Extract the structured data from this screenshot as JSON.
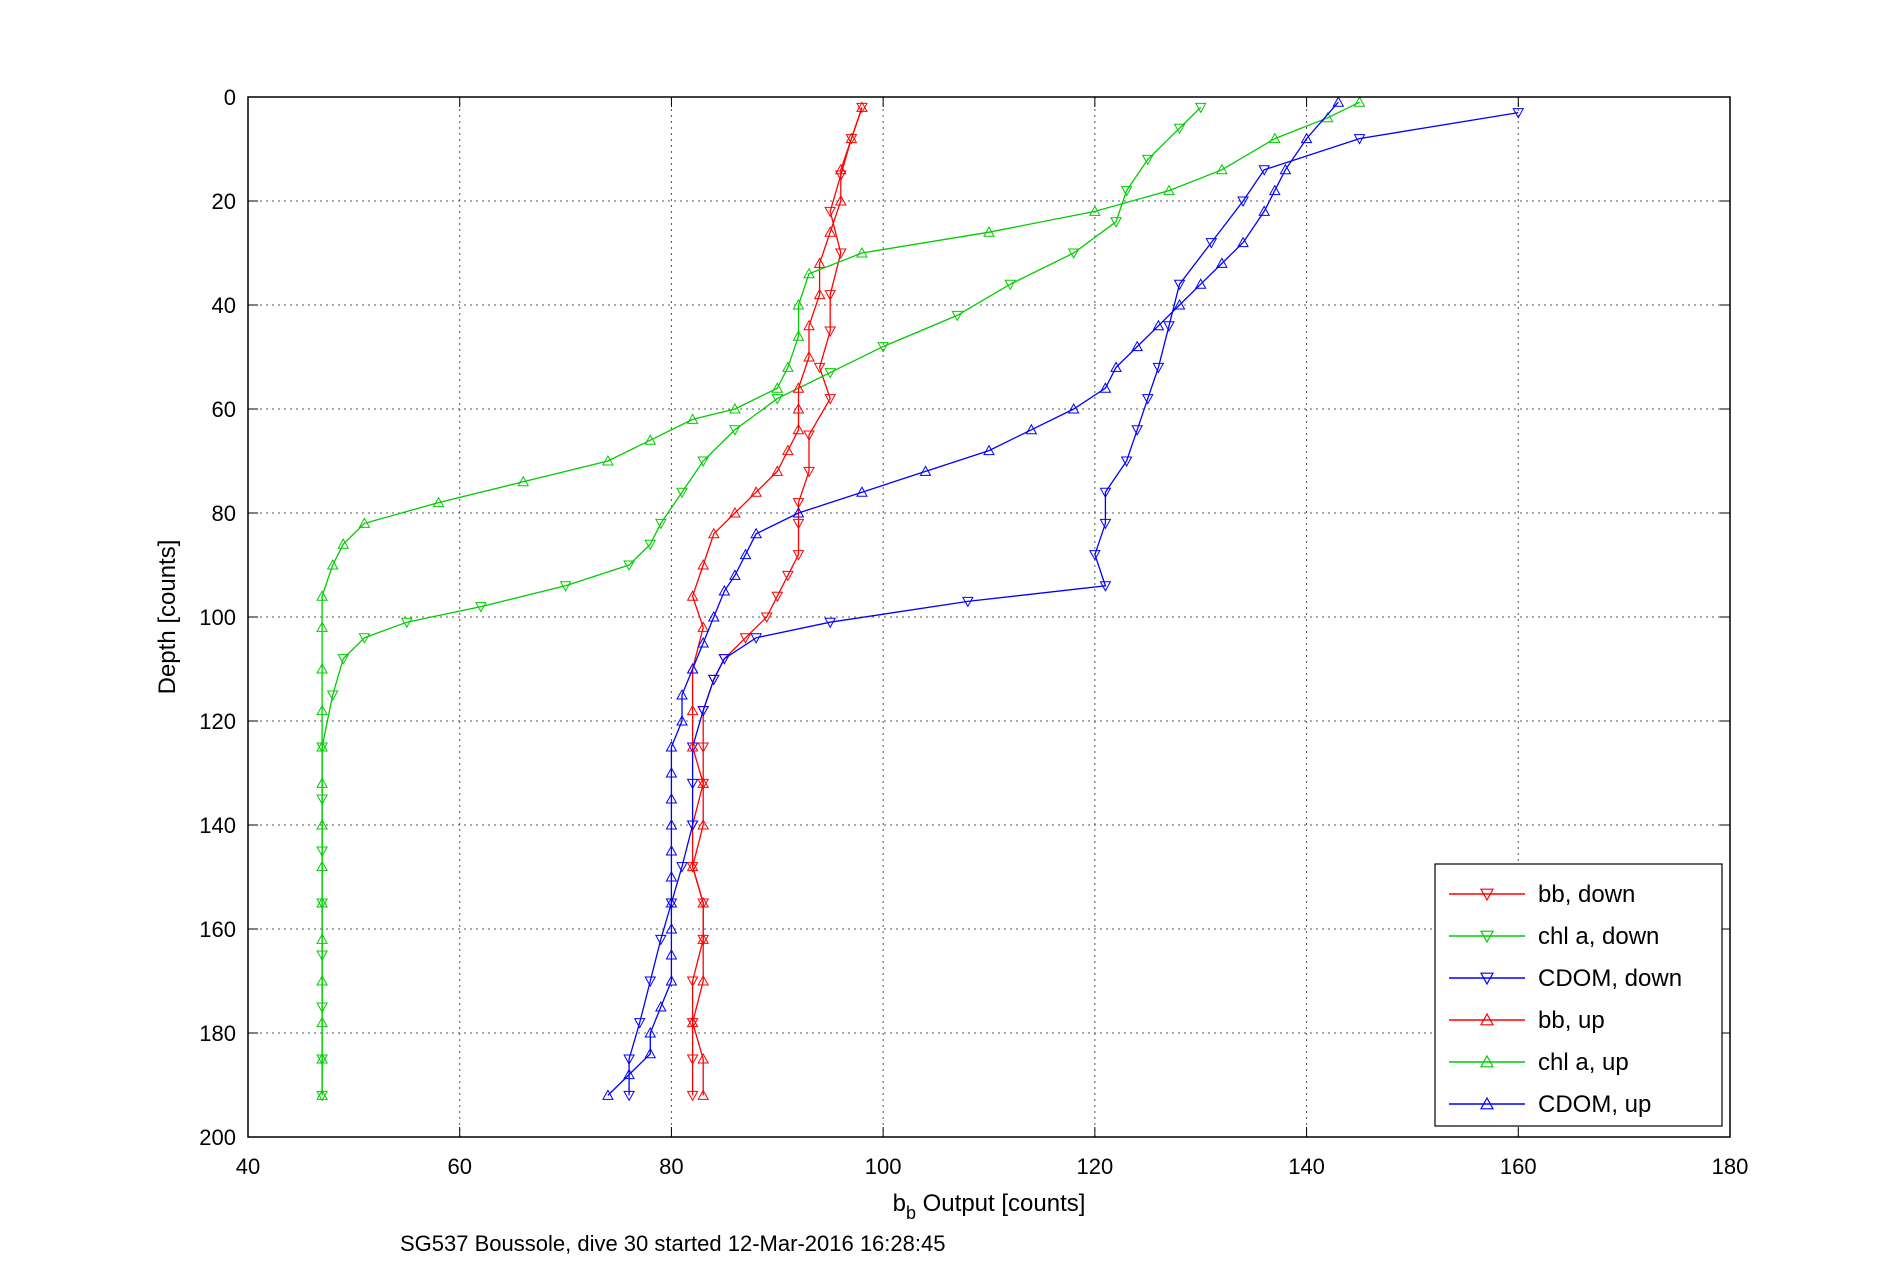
{
  "chart_data": {
    "type": "line",
    "xlabel_main": "b",
    "xlabel_sub": "b",
    "xlabel_rest": " Output [counts]",
    "ylabel": "Depth [counts]",
    "caption": "SG537 Boussole, dive 30 started 12-Mar-2016 16:28:45",
    "xlim": [
      40,
      180
    ],
    "ylim": [
      0,
      200
    ],
    "y_reversed": true,
    "grid": true,
    "xticks": [
      40,
      60,
      80,
      100,
      120,
      140,
      160,
      180
    ],
    "yticks": [
      0,
      20,
      40,
      60,
      80,
      100,
      120,
      140,
      160,
      180,
      200
    ],
    "xtick_labels": [
      "40",
      "60",
      "80",
      "100",
      "120",
      "140",
      "160",
      "180"
    ],
    "ytick_labels": [
      "0",
      "20",
      "40",
      "60",
      "80",
      "100",
      "120",
      "140",
      "160",
      "180",
      "200"
    ],
    "legend_position": "bottom-right",
    "series": [
      {
        "name": "bb, down",
        "color": "#ff0000",
        "marker": "triangle-down",
        "points": [
          [
            98,
            2
          ],
          [
            97,
            8
          ],
          [
            96,
            15
          ],
          [
            95,
            22
          ],
          [
            96,
            30
          ],
          [
            95,
            38
          ],
          [
            95,
            45
          ],
          [
            94,
            52
          ],
          [
            95,
            58
          ],
          [
            93,
            65
          ],
          [
            93,
            72
          ],
          [
            92,
            78
          ],
          [
            92,
            82
          ],
          [
            92,
            88
          ],
          [
            91,
            92
          ],
          [
            90,
            96
          ],
          [
            89,
            100
          ],
          [
            87,
            104
          ],
          [
            85,
            108
          ],
          [
            84,
            112
          ],
          [
            83,
            118
          ],
          [
            83,
            125
          ],
          [
            83,
            132
          ],
          [
            82,
            140
          ],
          [
            82,
            148
          ],
          [
            83,
            155
          ],
          [
            83,
            162
          ],
          [
            82,
            170
          ],
          [
            82,
            178
          ],
          [
            82,
            185
          ],
          [
            82,
            192
          ]
        ]
      },
      {
        "name": "chl a, down",
        "color": "#00cc00",
        "marker": "triangle-down",
        "points": [
          [
            130,
            2
          ],
          [
            128,
            6
          ],
          [
            125,
            12
          ],
          [
            123,
            18
          ],
          [
            122,
            24
          ],
          [
            118,
            30
          ],
          [
            112,
            36
          ],
          [
            107,
            42
          ],
          [
            100,
            48
          ],
          [
            95,
            53
          ],
          [
            90,
            58
          ],
          [
            86,
            64
          ],
          [
            83,
            70
          ],
          [
            81,
            76
          ],
          [
            79,
            82
          ],
          [
            78,
            86
          ],
          [
            76,
            90
          ],
          [
            70,
            94
          ],
          [
            62,
            98
          ],
          [
            55,
            101
          ],
          [
            51,
            104
          ],
          [
            49,
            108
          ],
          [
            48,
            115
          ],
          [
            47,
            125
          ],
          [
            47,
            135
          ],
          [
            47,
            145
          ],
          [
            47,
            155
          ],
          [
            47,
            165
          ],
          [
            47,
            175
          ],
          [
            47,
            185
          ],
          [
            47,
            192
          ]
        ]
      },
      {
        "name": "CDOM, down",
        "color": "#0000ff",
        "marker": "triangle-down",
        "points": [
          [
            160,
            3
          ],
          [
            145,
            8
          ],
          [
            136,
            14
          ],
          [
            134,
            20
          ],
          [
            131,
            28
          ],
          [
            128,
            36
          ],
          [
            127,
            44
          ],
          [
            126,
            52
          ],
          [
            125,
            58
          ],
          [
            124,
            64
          ],
          [
            123,
            70
          ],
          [
            121,
            76
          ],
          [
            121,
            82
          ],
          [
            120,
            88
          ],
          [
            121,
            94
          ],
          [
            108,
            97
          ],
          [
            95,
            101
          ],
          [
            88,
            104
          ],
          [
            85,
            108
          ],
          [
            84,
            112
          ],
          [
            83,
            118
          ],
          [
            82,
            125
          ],
          [
            82,
            132
          ],
          [
            82,
            140
          ],
          [
            81,
            148
          ],
          [
            80,
            155
          ],
          [
            79,
            162
          ],
          [
            78,
            170
          ],
          [
            77,
            178
          ],
          [
            76,
            185
          ],
          [
            76,
            192
          ]
        ]
      },
      {
        "name": "bb, up",
        "color": "#ff0000",
        "marker": "triangle-up",
        "points": [
          [
            83,
            192
          ],
          [
            83,
            185
          ],
          [
            82,
            178
          ],
          [
            83,
            170
          ],
          [
            83,
            162
          ],
          [
            83,
            155
          ],
          [
            82,
            148
          ],
          [
            83,
            140
          ],
          [
            83,
            132
          ],
          [
            82,
            125
          ],
          [
            82,
            118
          ],
          [
            82,
            110
          ],
          [
            83,
            102
          ],
          [
            82,
            96
          ],
          [
            83,
            90
          ],
          [
            84,
            84
          ],
          [
            86,
            80
          ],
          [
            88,
            76
          ],
          [
            90,
            72
          ],
          [
            91,
            68
          ],
          [
            92,
            64
          ],
          [
            92,
            60
          ],
          [
            92,
            56
          ],
          [
            93,
            50
          ],
          [
            93,
            44
          ],
          [
            94,
            38
          ],
          [
            94,
            32
          ],
          [
            95,
            26
          ],
          [
            96,
            20
          ],
          [
            96,
            14
          ],
          [
            97,
            8
          ],
          [
            98,
            2
          ]
        ]
      },
      {
        "name": "chl a, up",
        "color": "#00cc00",
        "marker": "triangle-up",
        "points": [
          [
            47,
            192
          ],
          [
            47,
            185
          ],
          [
            47,
            178
          ],
          [
            47,
            170
          ],
          [
            47,
            162
          ],
          [
            47,
            155
          ],
          [
            47,
            148
          ],
          [
            47,
            140
          ],
          [
            47,
            132
          ],
          [
            47,
            125
          ],
          [
            47,
            118
          ],
          [
            47,
            110
          ],
          [
            47,
            102
          ],
          [
            47,
            96
          ],
          [
            48,
            90
          ],
          [
            49,
            86
          ],
          [
            51,
            82
          ],
          [
            58,
            78
          ],
          [
            66,
            74
          ],
          [
            74,
            70
          ],
          [
            78,
            66
          ],
          [
            82,
            62
          ],
          [
            86,
            60
          ],
          [
            90,
            56
          ],
          [
            91,
            52
          ],
          [
            92,
            46
          ],
          [
            92,
            40
          ],
          [
            93,
            34
          ],
          [
            98,
            30
          ],
          [
            110,
            26
          ],
          [
            120,
            22
          ],
          [
            127,
            18
          ],
          [
            132,
            14
          ],
          [
            137,
            8
          ],
          [
            142,
            4
          ],
          [
            145,
            1
          ]
        ]
      },
      {
        "name": "CDOM, up",
        "color": "#0000ff",
        "marker": "triangle-up",
        "points": [
          [
            74,
            192
          ],
          [
            76,
            188
          ],
          [
            78,
            184
          ],
          [
            78,
            180
          ],
          [
            79,
            175
          ],
          [
            80,
            170
          ],
          [
            80,
            165
          ],
          [
            80,
            160
          ],
          [
            80,
            155
          ],
          [
            80,
            150
          ],
          [
            80,
            145
          ],
          [
            80,
            140
          ],
          [
            80,
            135
          ],
          [
            80,
            130
          ],
          [
            80,
            125
          ],
          [
            81,
            120
          ],
          [
            81,
            115
          ],
          [
            82,
            110
          ],
          [
            83,
            105
          ],
          [
            84,
            100
          ],
          [
            85,
            95
          ],
          [
            86,
            92
          ],
          [
            87,
            88
          ],
          [
            88,
            84
          ],
          [
            92,
            80
          ],
          [
            98,
            76
          ],
          [
            104,
            72
          ],
          [
            110,
            68
          ],
          [
            114,
            64
          ],
          [
            118,
            60
          ],
          [
            121,
            56
          ],
          [
            122,
            52
          ],
          [
            124,
            48
          ],
          [
            126,
            44
          ],
          [
            128,
            40
          ],
          [
            130,
            36
          ],
          [
            132,
            32
          ],
          [
            134,
            28
          ],
          [
            136,
            22
          ],
          [
            137,
            18
          ],
          [
            138,
            14
          ],
          [
            140,
            8
          ],
          [
            143,
            1
          ]
        ]
      }
    ]
  }
}
